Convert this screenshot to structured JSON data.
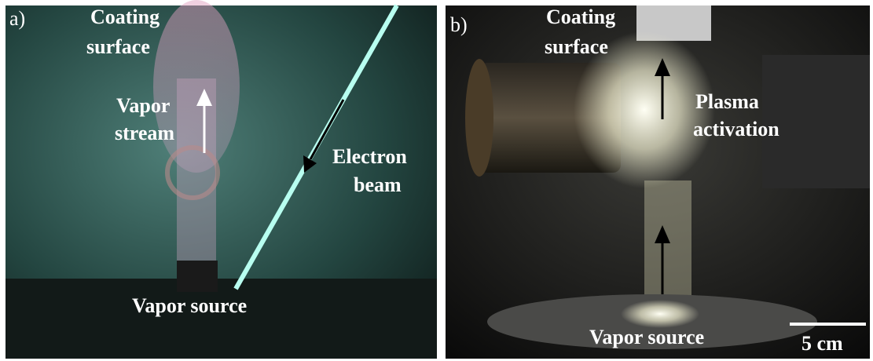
{
  "panels": [
    {
      "tag": "a)",
      "labels": [
        {
          "lines": [
            "Coating",
            "surface"
          ]
        },
        {
          "lines": [
            "Vapor",
            "stream"
          ]
        },
        {
          "lines": [
            "Electron",
            "beam"
          ]
        },
        {
          "lines": [
            "Vapor source"
          ]
        }
      ]
    },
    {
      "tag": "b)",
      "labels": [
        {
          "lines": [
            "Coating",
            "surface"
          ]
        },
        {
          "lines": [
            "Plasma",
            "activation"
          ]
        },
        {
          "lines": [
            "Vapor source"
          ]
        }
      ],
      "scale_bar": "5 cm"
    }
  ]
}
